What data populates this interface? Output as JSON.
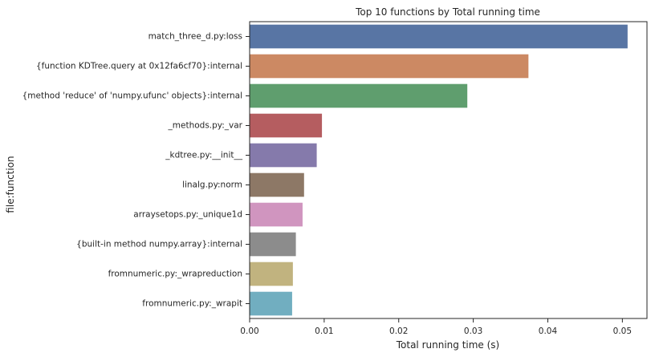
{
  "chart_data": {
    "type": "bar",
    "orientation": "horizontal",
    "title": "Top 10 functions by Total running time",
    "xlabel": "Total running time (s)",
    "ylabel": "file:function",
    "xlim": [
      0,
      0.0533
    ],
    "xticks": [
      "0.00",
      "0.01",
      "0.02",
      "0.03",
      "0.04",
      "0.05"
    ],
    "grid": false,
    "categories": [
      "match_three_d.py:loss",
      "{function KDTree.query at 0x12fa6cf70}:internal",
      "{method 'reduce' of 'numpy.ufunc' objects}:internal",
      "_methods.py:_var",
      "_kdtree.py:__init__",
      "linalg.py:norm",
      "arraysetops.py:_unique1d",
      "{built-in method numpy.array}:internal",
      "fromnumeric.py:_wrapreduction",
      "fromnumeric.py:_wrapit"
    ],
    "values": [
      0.0507,
      0.0374,
      0.0292,
      0.0097,
      0.009,
      0.0073,
      0.0071,
      0.0062,
      0.0058,
      0.0057
    ],
    "colors": [
      "#5875a4",
      "#cc8963",
      "#5f9e6e",
      "#b55d60",
      "#857aab",
      "#8d7866",
      "#d095bf",
      "#8c8c8c",
      "#c1b37f",
      "#71aec0"
    ]
  }
}
